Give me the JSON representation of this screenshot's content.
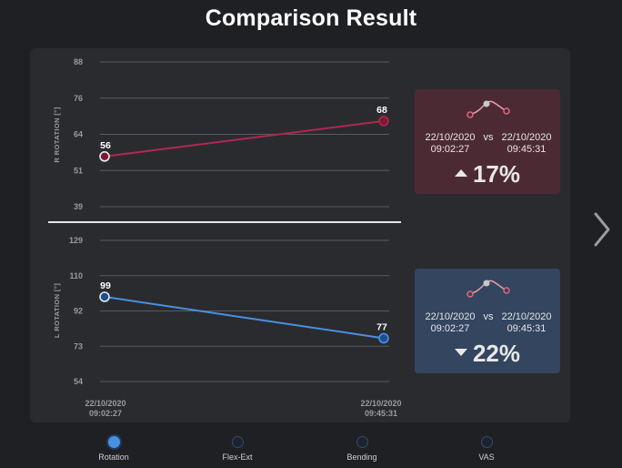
{
  "title": "Comparison Result",
  "charts": [
    {
      "id": "r-rotation",
      "ylabel": "R ROTATION [°]",
      "ticks": [
        "88",
        "76",
        "64",
        "51",
        "39"
      ],
      "ylim": [
        39,
        88
      ],
      "color": "#b0274f",
      "point_fill": "#7a1b36",
      "points": [
        {
          "x": "22/10/2020 09:02:27",
          "y": 56,
          "label": "56"
        },
        {
          "x": "22/10/2020 09:45:31",
          "y": 68,
          "label": "68"
        }
      ]
    },
    {
      "id": "l-rotation",
      "ylabel": "L ROTATION [°]",
      "ticks": [
        "129",
        "110",
        "92",
        "73",
        "54"
      ],
      "ylim": [
        54,
        129
      ],
      "color": "#4a90e2",
      "point_fill": "#1d4f8f",
      "points": [
        {
          "x": "22/10/2020 09:02:27",
          "y": 99,
          "label": "99"
        },
        {
          "x": "22/10/2020 09:45:31",
          "y": 77,
          "label": "77"
        }
      ]
    }
  ],
  "x_labels": [
    {
      "date": "22/10/2020",
      "time": "09:02:27"
    },
    {
      "date": "22/10/2020",
      "time": "09:45:31"
    }
  ],
  "cards": {
    "red": {
      "date1": "22/10/2020",
      "time1": "09:02:27",
      "vs": "vs",
      "date2": "22/10/2020",
      "time2": "09:45:31",
      "change": "17%",
      "direction": "up",
      "icon": "trend-sparkline-icon"
    },
    "blue": {
      "date1": "22/10/2020",
      "time1": "09:02:27",
      "vs": "vs",
      "date2": "22/10/2020",
      "time2": "09:45:31",
      "change": "22%",
      "direction": "down",
      "icon": "trend-sparkline-icon"
    }
  },
  "tabs": [
    {
      "label": "Rotation",
      "active": true
    },
    {
      "label": "Flex-Ext",
      "active": false
    },
    {
      "label": "Bending",
      "active": false
    },
    {
      "label": "VAS",
      "active": false
    }
  ],
  "colors": {
    "background": "#1f2024",
    "panel": "#2a2b2f",
    "red_series": "#b0274f",
    "blue_series": "#4a90e2",
    "red_card": "#4c2a34",
    "blue_card": "#33455f"
  },
  "chart_data": [
    {
      "type": "line",
      "x": [
        "22/10/2020 09:02:27",
        "22/10/2020 09:45:31"
      ],
      "series": [
        {
          "values": [
            56,
            68
          ]
        }
      ],
      "ylabel": "R ROTATION [°]",
      "ylim": [
        39,
        88
      ],
      "grid": true
    },
    {
      "type": "line",
      "x": [
        "22/10/2020 09:02:27",
        "22/10/2020 09:45:31"
      ],
      "series": [
        {
          "values": [
            99,
            77
          ]
        }
      ],
      "ylabel": "L ROTATION [°]",
      "ylim": [
        54,
        129
      ],
      "grid": true
    }
  ],
  "nav": {
    "next_icon": "chevron-right-icon"
  }
}
